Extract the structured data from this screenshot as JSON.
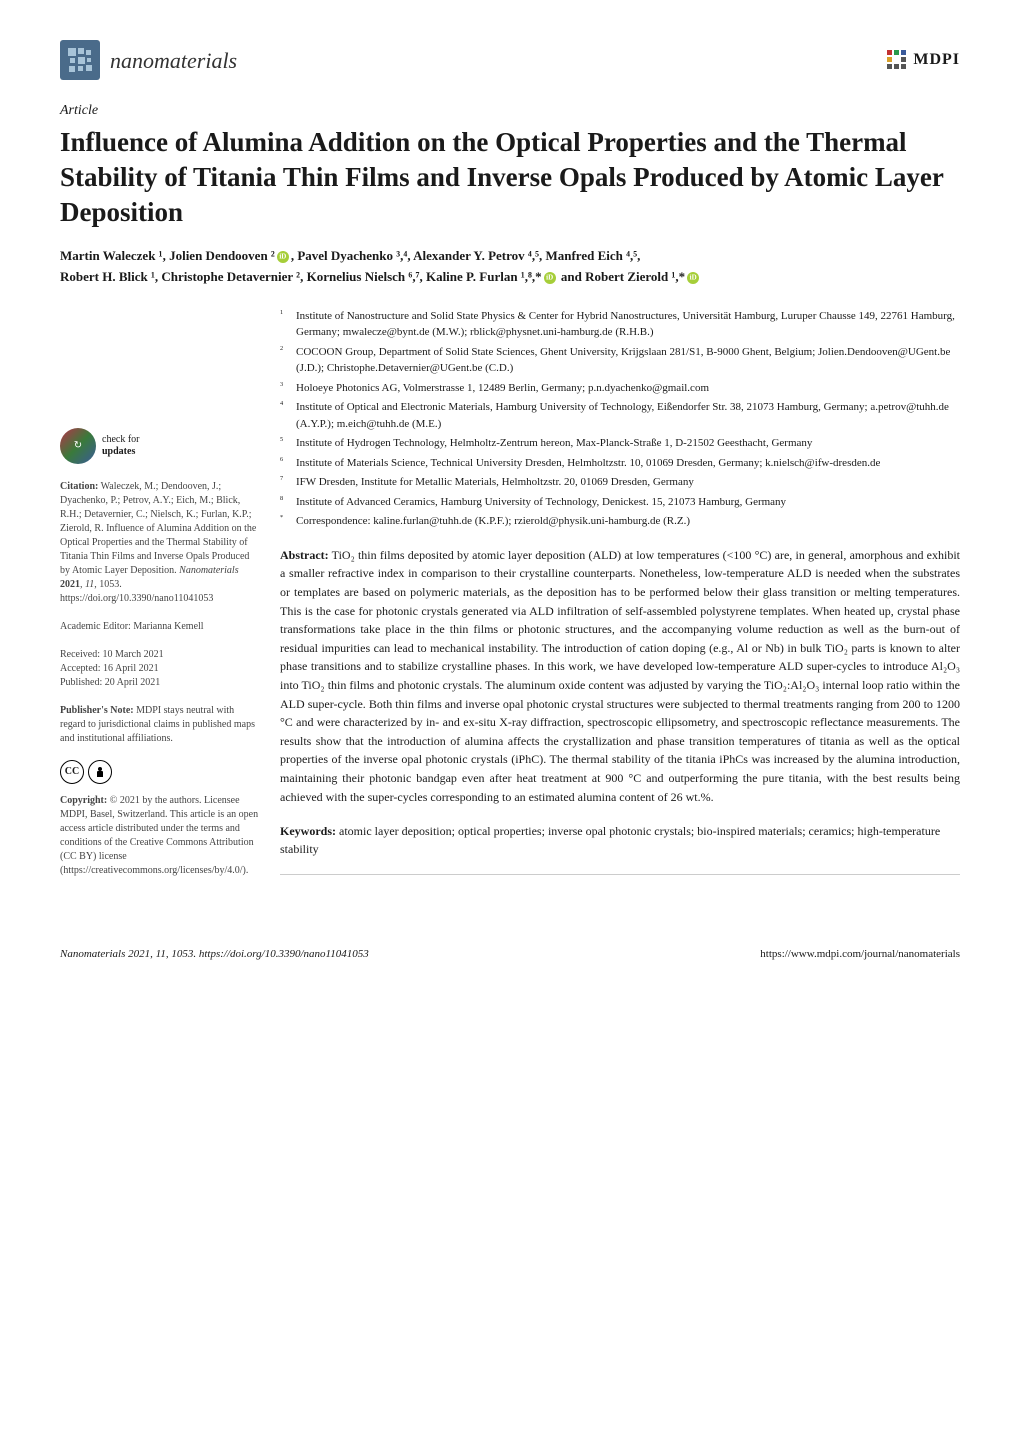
{
  "header": {
    "journal_name": "nanomaterials",
    "publisher": "MDPI"
  },
  "article_type": "Article",
  "title": "Influence of Alumina Addition on the Optical Properties and the Thermal Stability of Titania Thin Films and Inverse Opals Produced by Atomic Layer Deposition",
  "authors_line1": "Martin Waleczek ¹, Jolien Dendooven ²",
  "authors_line1b": ", Pavel Dyachenko ³,⁴, Alexander Y. Petrov ⁴,⁵, Manfred Eich ⁴,⁵,",
  "authors_line2": "Robert H. Blick ¹, Christophe Detavernier ², Kornelius Nielsch ⁶,⁷, Kaline P. Furlan ¹,⁸,*",
  "authors_line2b": " and Robert Zierold ¹,*",
  "affiliations": [
    {
      "num": "1",
      "text": "Institute of Nanostructure and Solid State Physics & Center for Hybrid Nanostructures, Universität Hamburg, Luruper Chausse 149, 22761 Hamburg, Germany; mwalecze@bynt.de (M.W.); rblick@physnet.uni-hamburg.de (R.H.B.)"
    },
    {
      "num": "2",
      "text": "COCOON Group, Department of Solid State Sciences, Ghent University, Krijgslaan 281/S1, B-9000 Ghent, Belgium; Jolien.Dendooven@UGent.be (J.D.); Christophe.Detavernier@UGent.be (C.D.)"
    },
    {
      "num": "3",
      "text": "Holoeye Photonics AG, Volmerstrasse 1, 12489 Berlin, Germany; p.n.dyachenko@gmail.com"
    },
    {
      "num": "4",
      "text": "Institute of Optical and Electronic Materials, Hamburg University of Technology, Eißendorfer Str. 38, 21073 Hamburg, Germany; a.petrov@tuhh.de (A.Y.P.); m.eich@tuhh.de (M.E.)"
    },
    {
      "num": "5",
      "text": "Institute of Hydrogen Technology, Helmholtz-Zentrum hereon, Max-Planck-Straße 1, D-21502 Geesthacht, Germany"
    },
    {
      "num": "6",
      "text": "Institute of Materials Science, Technical University Dresden, Helmholtzstr. 10, 01069 Dresden, Germany; k.nielsch@ifw-dresden.de"
    },
    {
      "num": "7",
      "text": "IFW Dresden, Institute for Metallic Materials, Helmholtzstr. 20, 01069 Dresden, Germany"
    },
    {
      "num": "8",
      "text": "Institute of Advanced Ceramics, Hamburg University of Technology, Denickest. 15, 21073 Hamburg, Germany"
    },
    {
      "num": "*",
      "text": "Correspondence: kaline.furlan@tuhh.de (K.P.F.); rzierold@physik.uni-hamburg.de (R.Z.)"
    }
  ],
  "abstract_label": "Abstract:",
  "abstract_text": " TiO₂ thin films deposited by atomic layer deposition (ALD) at low temperatures (<100 °C) are, in general, amorphous and exhibit a smaller refractive index in comparison to their crystalline counterparts. Nonetheless, low-temperature ALD is needed when the substrates or templates are based on polymeric materials, as the deposition has to be performed below their glass transition or melting temperatures. This is the case for photonic crystals generated via ALD infiltration of self-assembled polystyrene templates. When heated up, crystal phase transformations take place in the thin films or photonic structures, and the accompanying volume reduction as well as the burn-out of residual impurities can lead to mechanical instability. The introduction of cation doping (e.g., Al or Nb) in bulk TiO₂ parts is known to alter phase transitions and to stabilize crystalline phases. In this work, we have developed low-temperature ALD super-cycles to introduce Al₂O₃ into TiO₂ thin films and photonic crystals. The aluminum oxide content was adjusted by varying the TiO₂:Al₂O₃ internal loop ratio within the ALD super-cycle. Both thin films and inverse opal photonic crystal structures were subjected to thermal treatments ranging from 200 to 1200 °C and were characterized by in- and ex-situ X-ray diffraction, spectroscopic ellipsometry, and spectroscopic reflectance measurements. The results show that the introduction of alumina affects the crystallization and phase transition temperatures of titania as well as the optical properties of the inverse opal photonic crystals (iPhC). The thermal stability of the titania iPhCs was increased by the alumina introduction, maintaining their photonic bandgap even after heat treatment at 900 °C and outperforming the pure titania, with the best results being achieved with the super-cycles corresponding to an estimated alumina content of 26 wt.%.",
  "keywords_label": "Keywords:",
  "keywords_text": " atomic layer deposition; optical properties; inverse opal photonic crystals; bio-inspired materials; ceramics; high-temperature stability",
  "sidebar": {
    "check_updates_line1": "check for",
    "check_updates_line2": "updates",
    "citation_label": "Citation:",
    "citation_text": " Waleczek, M.; Dendooven, J.; Dyachenko, P.; Petrov, A.Y.; Eich, M.; Blick, R.H.; Detavernier, C.; Nielsch, K.; Furlan, K.P.; Zierold, R. Influence of Alumina Addition on the Optical Properties and the Thermal Stability of Titania Thin Films and Inverse Opals Produced by Atomic Layer Deposition. ",
    "citation_journal": "Nanomaterials",
    "citation_year": " 2021",
    "citation_vol": ", 11",
    "citation_pages": ", 1053. https://doi.org/10.3390/nano11041053",
    "editor_label": "Academic Editor: ",
    "editor_name": "Marianna Kemell",
    "received_label": "Received: ",
    "received_date": "10 March 2021",
    "accepted_label": "Accepted: ",
    "accepted_date": "16 April 2021",
    "published_label": "Published: ",
    "published_date": "20 April 2021",
    "publisher_note_label": "Publisher's Note:",
    "publisher_note_text": " MDPI stays neutral with regard to jurisdictional claims in published maps and institutional affiliations.",
    "copyright_label": "Copyright:",
    "copyright_text": " © 2021 by the authors. Licensee MDPI, Basel, Switzerland. This article is an open access article distributed under the terms and conditions of the Creative Commons Attribution (CC BY) license (https://creativecommons.org/licenses/by/4.0/)."
  },
  "footer": {
    "left": "Nanomaterials 2021, 11, 1053. https://doi.org/10.3390/nano11041053",
    "right": "https://www.mdpi.com/journal/nanomaterials"
  },
  "colors": {
    "journal_logo_bg": "#4a6b8a",
    "orcid_bg": "#a6ce39",
    "text_main": "#1a1a1a",
    "text_sidebar": "#444444"
  }
}
